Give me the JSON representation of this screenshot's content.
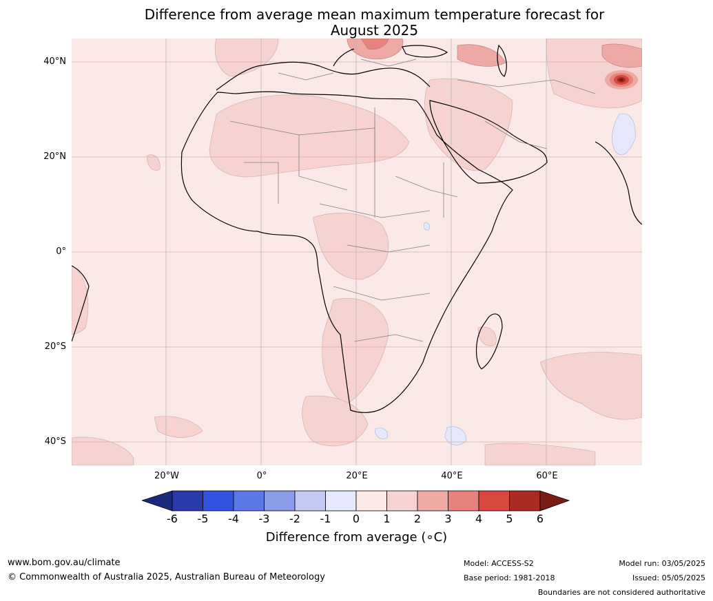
{
  "title_line1": "Difference from average mean maximum temperature forecast for",
  "title_line2": "August 2025",
  "map": {
    "lat_labels": [
      "40°N",
      "20°N",
      "0°",
      "20°S",
      "40°S"
    ],
    "lon_labels": [
      "20°W",
      "0°",
      "20°E",
      "40°E",
      "60°E"
    ],
    "dominant_anomaly": "0 to 1 °C above average",
    "hotspot": "Above 6 °C near Pakistan / northern India border"
  },
  "colorbar": {
    "ticks": [
      "-6",
      "-5",
      "-4",
      "-3",
      "-2",
      "-1",
      "0",
      "1",
      "2",
      "3",
      "4",
      "5",
      "6"
    ],
    "colors": [
      "#2a3aaa",
      "#3352e0",
      "#5a78e6",
      "#8a9be8",
      "#c2c9f2",
      "#e6e9fb",
      "#fbe9e7",
      "#f6d3d0",
      "#eea9a5",
      "#e7827c",
      "#d9483f",
      "#aa2a24"
    ],
    "under_color": "#1b2a7a",
    "over_color": "#7a1a14",
    "label": "Difference from average (∘C)"
  },
  "footer": {
    "website": "www.bom.gov.au/climate",
    "copyright": "© Commonwealth of Australia 2025, Australian Bureau of Meteorology",
    "model": "Model: ACCESS-S2",
    "base_period": "Base period: 1981-2018",
    "model_run": "Model run: 03/05/2025",
    "issued": "Issued: 05/05/2025",
    "disclaimer": "Boundaries are not considered authoritative"
  }
}
